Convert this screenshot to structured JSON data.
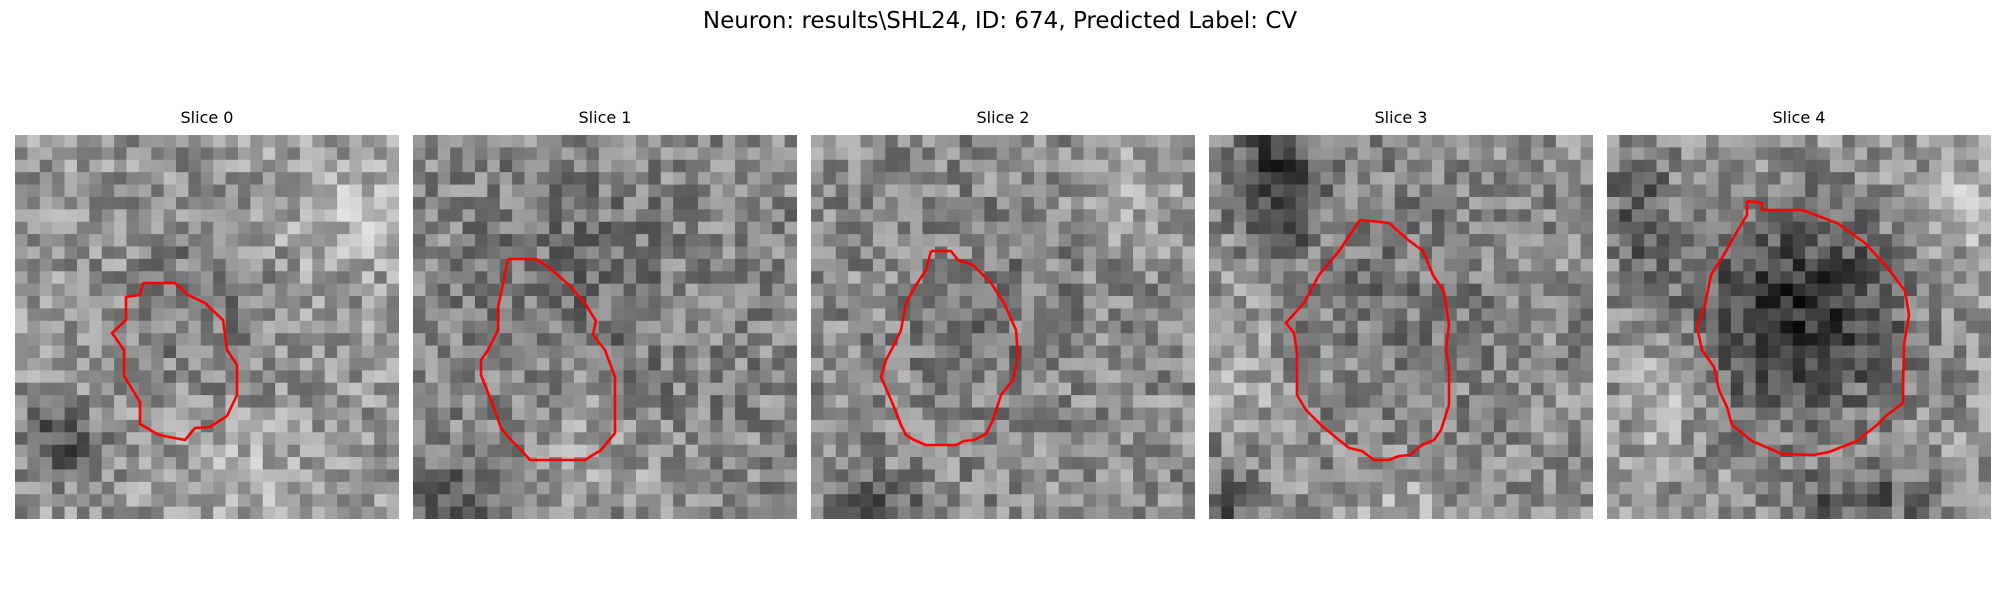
{
  "figure": {
    "suptitle": "Neuron: results\\SHL24, ID: 674, Predicted Label: CV",
    "outline_color": "#ff0000",
    "colormap": "gray",
    "axes_visible": false,
    "panels": [
      {
        "title": "Slice 0"
      },
      {
        "title": "Slice 1"
      },
      {
        "title": "Slice 2"
      },
      {
        "title": "Slice 3"
      },
      {
        "title": "Slice 4"
      }
    ]
  }
}
